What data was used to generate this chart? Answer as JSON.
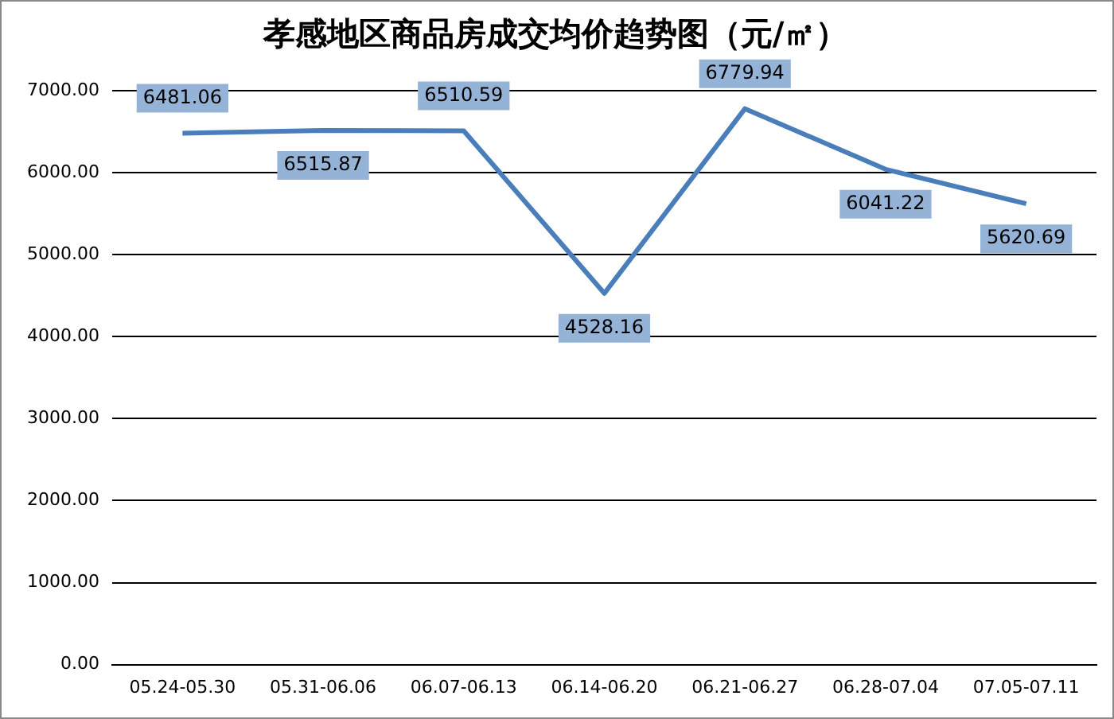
{
  "chart_data": {
    "type": "line",
    "title": "孝感地区商品房成交均价趋势图（元/㎡）",
    "categories": [
      "05.24-05.30",
      "05.31-06.06",
      "06.07-06.13",
      "06.14-06.20",
      "06.21-06.27",
      "06.28-07.04",
      "07.05-07.11"
    ],
    "series": [
      {
        "color": "#4a7ebb",
        "values": [
          6481.06,
          6515.87,
          6510.59,
          4528.16,
          6779.94,
          6041.22,
          5620.69
        ]
      }
    ],
    "ylim": [
      0,
      7000
    ],
    "yticks": [
      {
        "value": 0,
        "label": "0.00"
      },
      {
        "value": 1000,
        "label": "1000.00"
      },
      {
        "value": 2000,
        "label": "2000.00"
      },
      {
        "value": 3000,
        "label": "3000.00"
      },
      {
        "value": 4000,
        "label": "4000.00"
      },
      {
        "value": 5000,
        "label": "5000.00"
      },
      {
        "value": 6000,
        "label": "6000.00"
      },
      {
        "value": 7000,
        "label": "7000.00"
      }
    ],
    "grid": "y",
    "legend": false,
    "marker": "none",
    "line_style": "solid",
    "data_labels": true
  }
}
